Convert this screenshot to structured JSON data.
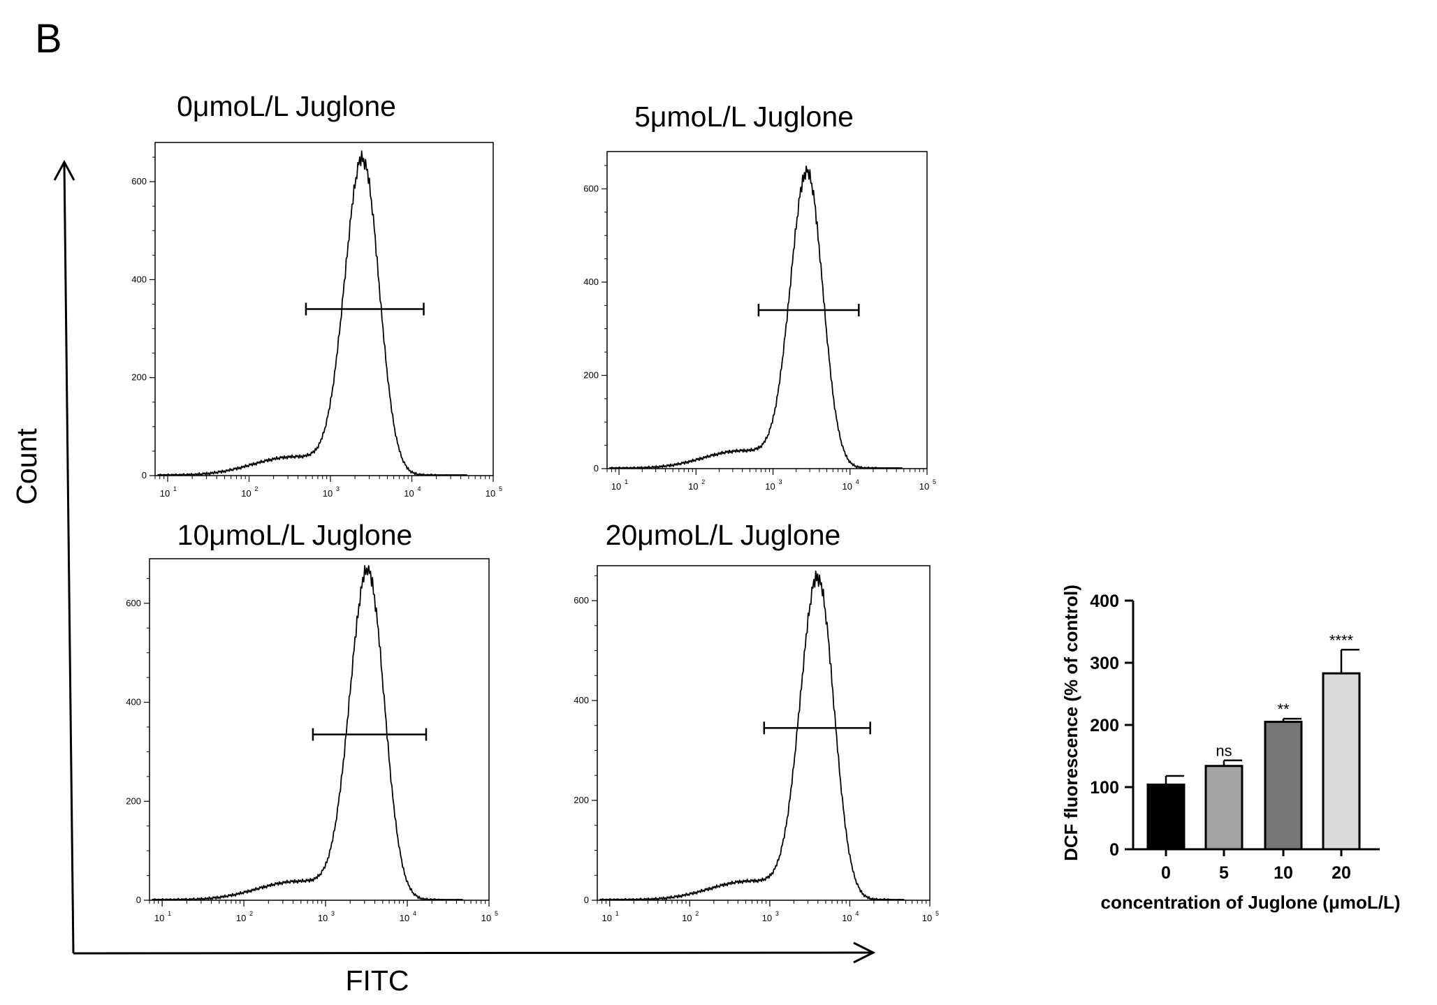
{
  "figure": {
    "panel_label": "B",
    "global_y_label": "Count",
    "global_x_label": "FITC"
  },
  "chart_data": [
    {
      "type": "histogram",
      "title": "0μmoL/L Juglone",
      "xscale": "log",
      "xlim": [
        7,
        100000
      ],
      "ylim": [
        0,
        680
      ],
      "xticks": [
        {
          "base": "10",
          "exp": "1"
        },
        {
          "base": "10",
          "exp": "2"
        },
        {
          "base": "10",
          "exp": "3"
        },
        {
          "base": "10",
          "exp": "4"
        },
        {
          "base": "10",
          "exp": "5"
        }
      ],
      "yticks": [
        "0",
        "200",
        "400",
        "600"
      ],
      "peak": {
        "x": 2500,
        "y": 640
      },
      "gate": {
        "x1": 500,
        "x2": 14000,
        "y": 340
      }
    },
    {
      "type": "histogram",
      "title": "5μmoL/L Juglone",
      "xscale": "log",
      "xlim": [
        7,
        100000
      ],
      "ylim": [
        0,
        680
      ],
      "xticks": [
        {
          "base": "10",
          "exp": "1"
        },
        {
          "base": "10",
          "exp": "2"
        },
        {
          "base": "10",
          "exp": "3"
        },
        {
          "base": "10",
          "exp": "4"
        },
        {
          "base": "10",
          "exp": "5"
        }
      ],
      "yticks": [
        "0",
        "200",
        "400",
        "600"
      ],
      "peak": {
        "x": 2800,
        "y": 630
      },
      "gate": {
        "x1": 650,
        "x2": 13000,
        "y": 340
      }
    },
    {
      "type": "histogram",
      "title": "10μmoL/L Juglone",
      "xscale": "log",
      "xlim": [
        7,
        100000
      ],
      "ylim": [
        0,
        690
      ],
      "xticks": [
        {
          "base": "10",
          "exp": "1"
        },
        {
          "base": "10",
          "exp": "2"
        },
        {
          "base": "10",
          "exp": "3"
        },
        {
          "base": "10",
          "exp": "4"
        },
        {
          "base": "10",
          "exp": "5"
        }
      ],
      "yticks": [
        "0",
        "200",
        "400",
        "600"
      ],
      "peak": {
        "x": 3300,
        "y": 660
      },
      "gate": {
        "x1": 700,
        "x2": 17000,
        "y": 335
      }
    },
    {
      "type": "histogram",
      "title": "20μmoL/L Juglone",
      "xscale": "log",
      "xlim": [
        7,
        100000
      ],
      "ylim": [
        0,
        670
      ],
      "xticks": [
        {
          "base": "10",
          "exp": "1"
        },
        {
          "base": "10",
          "exp": "2"
        },
        {
          "base": "10",
          "exp": "3"
        },
        {
          "base": "10",
          "exp": "4"
        },
        {
          "base": "10",
          "exp": "5"
        }
      ],
      "yticks": [
        "0",
        "200",
        "400",
        "600"
      ],
      "peak": {
        "x": 4000,
        "y": 640
      },
      "gate": {
        "x1": 850,
        "x2": 18000,
        "y": 345
      }
    },
    {
      "type": "bar",
      "categories": [
        "0",
        "5",
        "10",
        "20"
      ],
      "values": [
        104,
        134,
        205,
        283
      ],
      "errors": [
        14,
        9,
        5,
        38
      ],
      "significance": [
        "",
        "ns",
        "**",
        "****"
      ],
      "colors": [
        "#000000",
        "#a3a3a3",
        "#767676",
        "#d9d9d9"
      ],
      "ylim": [
        0,
        400
      ],
      "yticks": [
        "0",
        "100",
        "200",
        "300",
        "400"
      ],
      "xlabel": "concentration of Juglone (μmoL/L)",
      "ylabel": "DCF fluorescence (% of control)"
    }
  ]
}
